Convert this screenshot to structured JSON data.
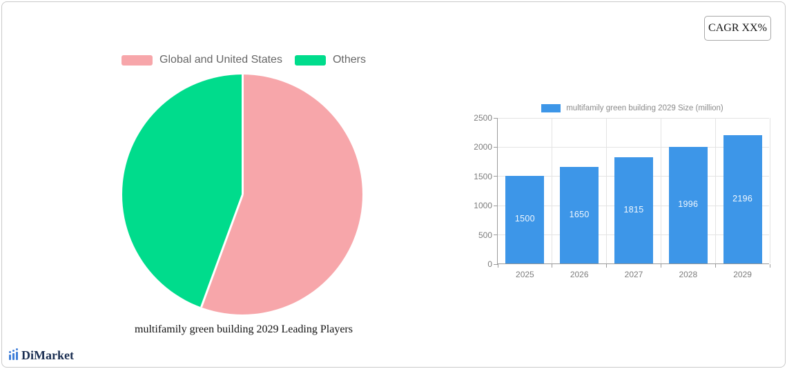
{
  "header": {
    "cagr_label": "CAGR XX%"
  },
  "logo": {
    "text": "DiMarket",
    "icon": "bar-chart-logo-icon",
    "icon_color": "#3f7fd9",
    "text_color": "#1b2f52"
  },
  "colors": {
    "pie_pink": "#f7a6aa",
    "pie_green": "#00dc8c",
    "bar_blue": "#3d96e8",
    "card_border": "#c9c9c9",
    "axis_text": "#7c7c7c",
    "legend_text": "#666666"
  },
  "chart_data": [
    {
      "type": "pie",
      "title": "multifamily green building 2029 Leading Players",
      "legend_position": "top",
      "start_angle_deg": 0,
      "slices": [
        {
          "label": "Global and United States",
          "value": 55.6,
          "color": "#f7a6aa"
        },
        {
          "label": "Others",
          "value": 44.4,
          "color": "#00dc8c"
        }
      ]
    },
    {
      "type": "bar",
      "categories": [
        "2025",
        "2026",
        "2027",
        "2028",
        "2029"
      ],
      "series": [
        {
          "name": "multifamily green building 2029 Size (million)",
          "color": "#3d96e8",
          "values": [
            1500,
            1650,
            1815,
            1996,
            2196
          ]
        }
      ],
      "ylim": [
        0,
        2500
      ],
      "yticks": [
        0,
        500,
        1000,
        1500,
        2000,
        2500
      ],
      "grid": true,
      "legend_position": "top",
      "bar_labels": true
    }
  ]
}
